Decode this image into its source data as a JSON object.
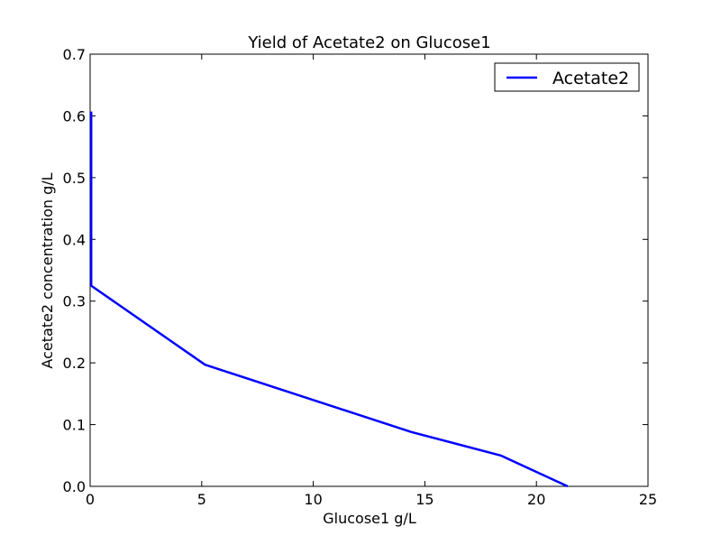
{
  "chart_data": {
    "type": "line",
    "title": "Yield of Acetate2 on Glucose1",
    "xlabel": "Glucose1 g/L",
    "ylabel": "Acetate2 concentration g/L",
    "xlim": [
      0,
      25
    ],
    "ylim": [
      0,
      0.7
    ],
    "xticks": [
      0,
      5,
      10,
      15,
      20,
      25
    ],
    "yticks": [
      0.0,
      0.1,
      0.2,
      0.3,
      0.4,
      0.5,
      0.6,
      0.7
    ],
    "xtick_labels": [
      "0",
      "5",
      "10",
      "15",
      "20",
      "25"
    ],
    "ytick_labels": [
      "0.0",
      "0.1",
      "0.2",
      "0.3",
      "0.4",
      "0.5",
      "0.6",
      "0.7"
    ],
    "grid": false,
    "legend_position": "top-right",
    "series": [
      {
        "name": "Acetate2",
        "color": "#0000ff",
        "x": [
          21.4,
          18.4,
          14.4,
          5.15,
          0.05,
          0.05
        ],
        "y": [
          0.0,
          0.05,
          0.088,
          0.197,
          0.325,
          0.607
        ]
      }
    ]
  }
}
